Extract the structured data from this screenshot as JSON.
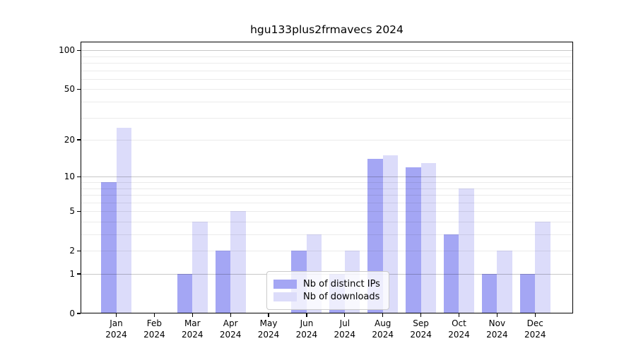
{
  "chart_data": {
    "type": "bar",
    "title": "hgu133plus2frmavecs 2024",
    "categories": [
      "Jan",
      "Feb",
      "Mar",
      "Apr",
      "May",
      "Jun",
      "Jul",
      "Aug",
      "Sep",
      "Oct",
      "Nov",
      "Dec"
    ],
    "category_year": "2024",
    "series": [
      {
        "name": "Nb of distinct IPs",
        "color": "#a4a6f4",
        "values": [
          9,
          0,
          1,
          2,
          0,
          2,
          1,
          14,
          12,
          3,
          1,
          1
        ]
      },
      {
        "name": "Nb of downloads",
        "color": "#dcdcfa",
        "values": [
          25,
          0,
          4,
          5,
          0,
          3,
          2,
          15,
          13,
          8,
          2,
          4
        ]
      }
    ],
    "yscale": "log10(1+x)",
    "ylim_top_logunits": 2.07,
    "yticks": [
      0,
      1,
      2,
      5,
      10,
      20,
      50,
      100
    ],
    "major_gridlines": [
      1,
      10,
      100
    ],
    "minor_gridlines": [
      2,
      3,
      4,
      5,
      6,
      7,
      8,
      9,
      20,
      30,
      40,
      50,
      60,
      70,
      80,
      90
    ],
    "grid_major_color": "rgba(0,0,0,0.22)",
    "grid_minor_color": "rgba(0,0,0,0.08)",
    "grid": true,
    "legend_position": "lower-center-left",
    "bar_width_units": 0.4,
    "xlabel": "",
    "ylabel": ""
  }
}
